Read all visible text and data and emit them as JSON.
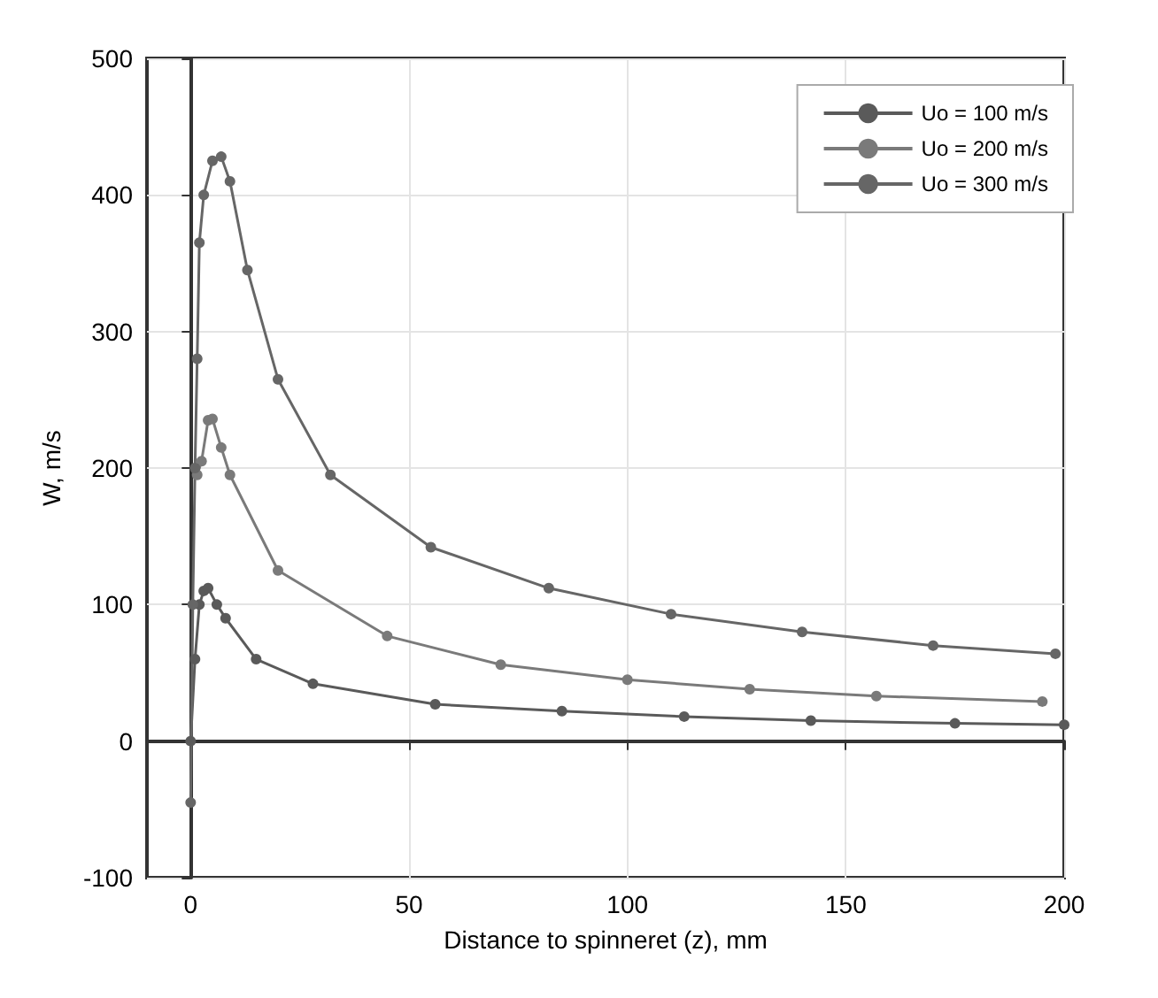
{
  "chart_data": {
    "type": "line",
    "xlabel": "Distance to spinneret (z), mm",
    "ylabel": "W, m/s",
    "xlim": [
      -10,
      200
    ],
    "ylim": [
      -100,
      500
    ],
    "xticks": [
      0,
      50,
      100,
      150,
      200
    ],
    "yticks": [
      -100,
      0,
      100,
      200,
      300,
      400,
      500
    ],
    "grid": true,
    "legend": "top right",
    "marker": "circle",
    "line_style": "solid",
    "series": [
      {
        "name": "Uo = 100 m/s",
        "color": "#5a5a5a",
        "x": [
          0,
          1,
          2,
          3,
          4,
          6,
          8,
          15,
          28,
          56,
          85,
          113,
          142,
          175,
          200
        ],
        "values": [
          0,
          60,
          100,
          110,
          112,
          100,
          90,
          60,
          42,
          27,
          22,
          18,
          15,
          13,
          12
        ]
      },
      {
        "name": "Uo = 200 m/s",
        "color": "#7a7a7a",
        "x": [
          1.5,
          2.5,
          4,
          5,
          7,
          9,
          20,
          45,
          71,
          100,
          128,
          157,
          195
        ],
        "values": [
          195,
          205,
          235,
          236,
          215,
          195,
          125,
          77,
          56,
          45,
          38,
          33,
          29
        ]
      },
      {
        "name": "Uo = 300 m/s",
        "color": "#666666",
        "x": [
          0,
          0.5,
          1,
          1.5,
          2,
          3,
          5,
          7,
          9,
          13,
          20,
          32,
          55,
          82,
          110,
          140,
          170,
          198
        ],
        "values": [
          -45,
          100,
          200,
          280,
          365,
          400,
          425,
          428,
          410,
          345,
          265,
          195,
          142,
          112,
          93,
          80,
          70,
          64
        ]
      }
    ]
  }
}
